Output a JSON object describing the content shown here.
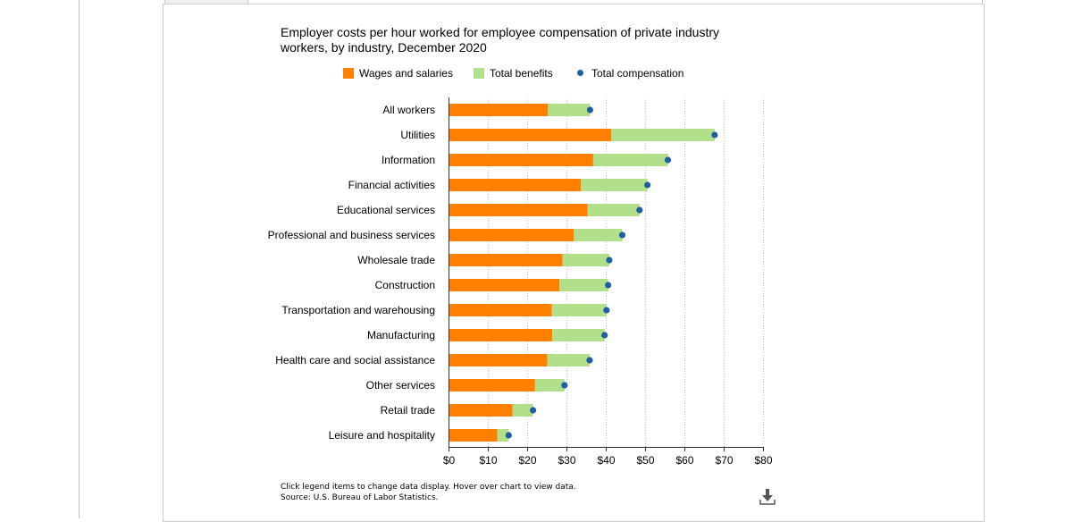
{
  "colors": {
    "wages": "#ff7f00",
    "benefits": "#b2df8a",
    "total": "#1f5f9f",
    "grid": "#c8c8c8"
  },
  "legend": [
    {
      "label": "Wages and salaries",
      "marker": "square",
      "color": "#ff7f00"
    },
    {
      "label": "Total benefits",
      "marker": "square",
      "color": "#b2df8a"
    },
    {
      "label": "Total compensation",
      "marker": "circle",
      "color": "#1f5f9f"
    }
  ],
  "footnote": {
    "line1": "Click legend items to change data display. Hover over chart to view data.",
    "line2": "Source: U.S. Bureau of Labor Statistics."
  },
  "download_icon": "download-icon",
  "chart_data": {
    "type": "bar",
    "orientation": "horizontal",
    "stacked": true,
    "title": "Employer costs per hour worked for employee compensation of private industry workers, by industry, December 2020",
    "categories": [
      "All workers",
      "Utilities",
      "Information",
      "Financial activities",
      "Educational services",
      "Professional and business services",
      "Wholesale trade",
      "Construction",
      "Transportation and warehousing",
      "Manufacturing",
      "Health care and social assistance",
      "Other services",
      "Retail trade",
      "Leisure and hospitality"
    ],
    "series": [
      {
        "name": "Wages and salaries",
        "type": "bar",
        "values": [
          25.3,
          41.4,
          36.8,
          33.7,
          35.4,
          31.9,
          29.0,
          28.2,
          26.3,
          26.4,
          25.1,
          22.0,
          16.3,
          12.4
        ]
      },
      {
        "name": "Total benefits",
        "type": "bar",
        "values": [
          10.7,
          26.3,
          19.0,
          16.9,
          13.2,
          12.3,
          11.9,
          12.4,
          13.9,
          13.3,
          10.8,
          7.5,
          5.2,
          2.9
        ]
      },
      {
        "name": "Total compensation",
        "type": "scatter",
        "values": [
          36.0,
          67.7,
          55.8,
          50.6,
          48.6,
          44.2,
          40.9,
          40.6,
          40.2,
          39.7,
          35.9,
          29.5,
          21.5,
          15.3
        ]
      }
    ],
    "xlim": [
      0,
      80
    ],
    "xticks": [
      "$0",
      "$10",
      "$20",
      "$30",
      "$40",
      "$50",
      "$60",
      "$70",
      "$80"
    ],
    "grid": true
  }
}
